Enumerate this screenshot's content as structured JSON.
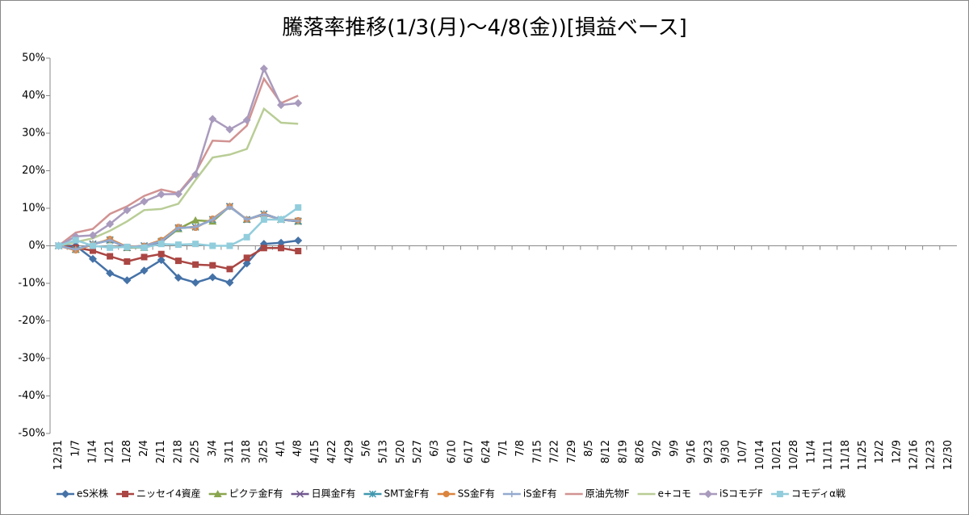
{
  "chart_data": {
    "type": "line",
    "title": "騰落率推移(1/3(月)～4/8(金))[損益ベース]",
    "categories": [
      "12/31",
      "1/7",
      "1/14",
      "1/21",
      "1/28",
      "2/4",
      "2/11",
      "2/18",
      "2/25",
      "3/4",
      "3/11",
      "3/18",
      "3/25",
      "4/1",
      "4/8",
      "4/15",
      "4/22",
      "4/29",
      "5/6",
      "5/13",
      "5/20",
      "5/27",
      "6/3",
      "6/10",
      "6/17",
      "6/24",
      "7/1",
      "7/8",
      "7/15",
      "7/22",
      "7/29",
      "8/5",
      "8/12",
      "8/19",
      "8/26",
      "9/2",
      "9/9",
      "9/16",
      "9/23",
      "9/30",
      "10/7",
      "10/14",
      "10/21",
      "10/28",
      "11/4",
      "11/11",
      "11/18",
      "11/25",
      "12/2",
      "12/9",
      "12/16",
      "12/23",
      "12/30"
    ],
    "ylim": [
      -50,
      50
    ],
    "yticks": [
      {
        "value": -50,
        "label": "-50%"
      },
      {
        "value": -40,
        "label": "-40%"
      },
      {
        "value": -30,
        "label": "-30%"
      },
      {
        "value": -20,
        "label": "-20%"
      },
      {
        "value": -10,
        "label": "-10%"
      },
      {
        "value": 0,
        "label": "0%"
      },
      {
        "value": 10,
        "label": "10%"
      },
      {
        "value": 20,
        "label": "20%"
      },
      {
        "value": 30,
        "label": "30%"
      },
      {
        "value": 40,
        "label": "40%"
      },
      {
        "value": 50,
        "label": "50%"
      }
    ],
    "grid": false,
    "legend": "bottom",
    "series": [
      {
        "name": "eS米株",
        "color": "#4572A7",
        "marker": "diamond",
        "values": [
          0,
          0,
          -3.5,
          -7.3,
          -9.2,
          -6.6,
          -3.8,
          -8.5,
          -9.8,
          -8.4,
          -9.8,
          -4.7,
          0.5,
          0.8,
          1.4,
          null,
          null,
          null,
          null,
          null,
          null,
          null,
          null,
          null,
          null,
          null,
          null,
          null,
          null,
          null,
          null,
          null,
          null,
          null,
          null,
          null,
          null,
          null,
          null,
          null,
          null,
          null,
          null,
          null,
          null,
          null,
          null,
          null,
          null,
          null,
          null,
          null,
          null
        ]
      },
      {
        "name": "ニッセイ4資産",
        "color": "#AA4643",
        "marker": "square",
        "values": [
          0,
          -0.5,
          -1.3,
          -2.8,
          -4.2,
          -3,
          -2.2,
          -4,
          -5,
          -5.2,
          -6.2,
          -3.2,
          -0.6,
          -0.6,
          -1.4,
          null,
          null,
          null,
          null,
          null,
          null,
          null,
          null,
          null,
          null,
          null,
          null,
          null,
          null,
          null,
          null,
          null,
          null,
          null,
          null,
          null,
          null,
          null,
          null,
          null,
          null,
          null,
          null,
          null,
          null,
          null,
          null,
          null,
          null,
          null,
          null,
          null,
          null
        ]
      },
      {
        "name": "ピクテ金F有",
        "color": "#89A54E",
        "marker": "triangle",
        "values": [
          0,
          -1,
          0.5,
          1.5,
          -0.5,
          -0.5,
          1,
          4.5,
          6.8,
          6.5,
          10.5,
          7,
          8.5,
          7,
          6.5,
          null,
          null,
          null,
          null,
          null,
          null,
          null,
          null,
          null,
          null,
          null,
          null,
          null,
          null,
          null,
          null,
          null,
          null,
          null,
          null,
          null,
          null,
          null,
          null,
          null,
          null,
          null,
          null,
          null,
          null,
          null,
          null,
          null,
          null,
          null,
          null,
          null,
          null
        ]
      },
      {
        "name": "日興金F有",
        "color": "#71588F",
        "marker": "x",
        "values": [
          0,
          -1,
          0.5,
          1.5,
          -0.5,
          0,
          1,
          4.8,
          5,
          7,
          10.5,
          7,
          8.5,
          7,
          6.5,
          null,
          null,
          null,
          null,
          null,
          null,
          null,
          null,
          null,
          null,
          null,
          null,
          null,
          null,
          null,
          null,
          null,
          null,
          null,
          null,
          null,
          null,
          null,
          null,
          null,
          null,
          null,
          null,
          null,
          null,
          null,
          null,
          null,
          null,
          null,
          null,
          null,
          null
        ]
      },
      {
        "name": "SMT金F有",
        "color": "#4198AF",
        "marker": "star",
        "values": [
          0,
          -1,
          0.4,
          1.6,
          -0.4,
          0,
          1.2,
          4.7,
          5,
          7,
          10.4,
          7,
          8.4,
          7,
          6.6,
          null,
          null,
          null,
          null,
          null,
          null,
          null,
          null,
          null,
          null,
          null,
          null,
          null,
          null,
          null,
          null,
          null,
          null,
          null,
          null,
          null,
          null,
          null,
          null,
          null,
          null,
          null,
          null,
          null,
          null,
          null,
          null,
          null,
          null,
          null,
          null,
          null,
          null
        ]
      },
      {
        "name": "SS金F有",
        "color": "#DB843D",
        "marker": "circle",
        "values": [
          0,
          -1.2,
          0.3,
          1.8,
          -0.3,
          0,
          1.5,
          5,
          4.8,
          7.2,
          10.5,
          7,
          8.3,
          7,
          6.8,
          null,
          null,
          null,
          null,
          null,
          null,
          null,
          null,
          null,
          null,
          null,
          null,
          null,
          null,
          null,
          null,
          null,
          null,
          null,
          null,
          null,
          null,
          null,
          null,
          null,
          null,
          null,
          null,
          null,
          null,
          null,
          null,
          null,
          null,
          null,
          null,
          null,
          null
        ]
      },
      {
        "name": "iS金F有",
        "color": "#93A9CF",
        "marker": "plus",
        "values": [
          0,
          -1,
          0.4,
          1.5,
          -0.4,
          0,
          1.2,
          4.8,
          5,
          7,
          10.4,
          7,
          8.4,
          7,
          6.6,
          null,
          null,
          null,
          null,
          null,
          null,
          null,
          null,
          null,
          null,
          null,
          null,
          null,
          null,
          null,
          null,
          null,
          null,
          null,
          null,
          null,
          null,
          null,
          null,
          null,
          null,
          null,
          null,
          null,
          null,
          null,
          null,
          null,
          null,
          null,
          null,
          null,
          null
        ]
      },
      {
        "name": "原油先物F",
        "color": "#D19392",
        "marker": "none",
        "values": [
          0,
          3.5,
          4.5,
          8.5,
          10.5,
          13.3,
          15,
          14,
          19.5,
          28,
          27.8,
          32,
          44.5,
          38,
          40,
          null,
          null,
          null,
          null,
          null,
          null,
          null,
          null,
          null,
          null,
          null,
          null,
          null,
          null,
          null,
          null,
          null,
          null,
          null,
          null,
          null,
          null,
          null,
          null,
          null,
          null,
          null,
          null,
          null,
          null,
          null,
          null,
          null,
          null,
          null,
          null,
          null,
          null
        ]
      },
      {
        "name": "e+コモ",
        "color": "#B9CD96",
        "marker": "none",
        "values": [
          0,
          1,
          2,
          4,
          6.5,
          9.5,
          9.8,
          11.2,
          17.5,
          23.5,
          24.3,
          25.8,
          36.5,
          32.8,
          32.5,
          null,
          null,
          null,
          null,
          null,
          null,
          null,
          null,
          null,
          null,
          null,
          null,
          null,
          null,
          null,
          null,
          null,
          null,
          null,
          null,
          null,
          null,
          null,
          null,
          null,
          null,
          null,
          null,
          null,
          null,
          null,
          null,
          null,
          null,
          null,
          null,
          null,
          null
        ]
      },
      {
        "name": "iSコモデF",
        "color": "#A99BBD",
        "marker": "diamond",
        "values": [
          0,
          2.5,
          2.8,
          5.8,
          9.5,
          11.8,
          13.7,
          13.8,
          19,
          33.8,
          31,
          33.5,
          47.2,
          37.5,
          38,
          null,
          null,
          null,
          null,
          null,
          null,
          null,
          null,
          null,
          null,
          null,
          null,
          null,
          null,
          null,
          null,
          null,
          null,
          null,
          null,
          null,
          null,
          null,
          null,
          null,
          null,
          null,
          null,
          null,
          null,
          null,
          null,
          null,
          null,
          null,
          null,
          null,
          null
        ]
      },
      {
        "name": "コモディα戦",
        "color": "#92CDDC",
        "marker": "square",
        "values": [
          0,
          1.5,
          0,
          -0.5,
          -0.3,
          -0.5,
          0.5,
          0.3,
          0.5,
          0,
          0,
          2.3,
          7,
          7,
          10.2,
          null,
          null,
          null,
          null,
          null,
          null,
          null,
          null,
          null,
          null,
          null,
          null,
          null,
          null,
          null,
          null,
          null,
          null,
          null,
          null,
          null,
          null,
          null,
          null,
          null,
          null,
          null,
          null,
          null,
          null,
          null,
          null,
          null,
          null,
          null,
          null,
          null,
          null
        ]
      }
    ]
  }
}
